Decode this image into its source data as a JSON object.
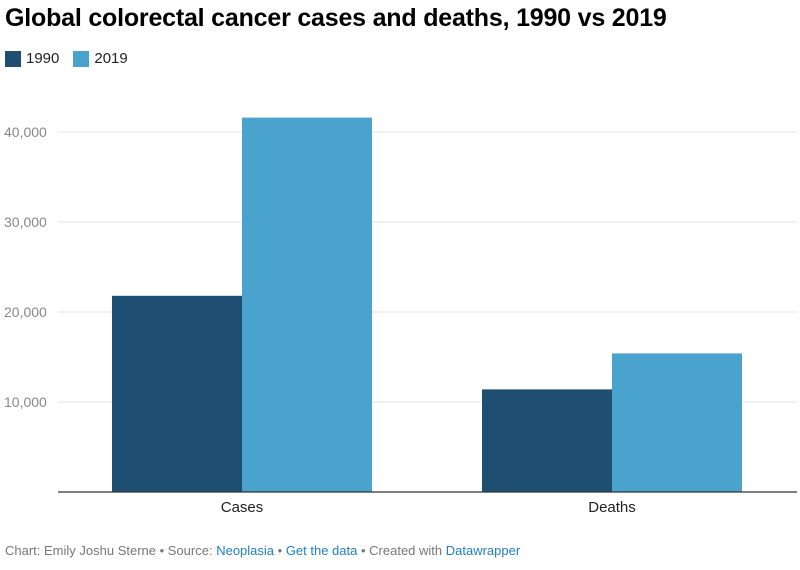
{
  "title": "Global colorectal cancer cases and deaths, 1990 vs 2019",
  "legend": [
    {
      "label": "1990",
      "color": "#1f4e73"
    },
    {
      "label": "2019",
      "color": "#4aa3cc"
    }
  ],
  "footer": {
    "prefix": "Chart: Emily Joshu Sterne • Source: ",
    "source_link": "Neoplasia",
    "sep1": " • ",
    "data_link": "Get the data",
    "sep2": " • Created with ",
    "tool_link": "Datawrapper"
  },
  "chart_data": {
    "type": "bar",
    "categories": [
      "Cases",
      "Deaths"
    ],
    "series": [
      {
        "name": "1990",
        "values": [
          21800,
          11400
        ],
        "color": "#1f4e73"
      },
      {
        "name": "2019",
        "values": [
          41600,
          15400
        ],
        "color": "#4aa3cc"
      }
    ],
    "yticks": [
      10000,
      20000,
      30000,
      40000
    ],
    "ytick_labels": [
      "10,000",
      "20,000",
      "30,000",
      "40,000"
    ],
    "ylim": [
      0,
      45000
    ],
    "grid": true,
    "legend_position": "top-left"
  }
}
